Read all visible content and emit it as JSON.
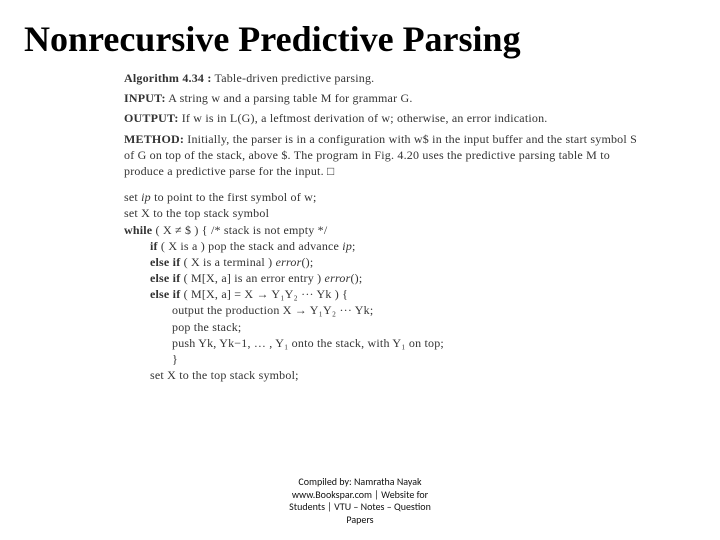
{
  "title": "Nonrecursive Predictive Parsing",
  "alg_head_bold": "Algorithm 4.34 :",
  "alg_head_rest": " Table-driven predictive parsing.",
  "input_bold": "INPUT:",
  "input_rest": " A string w and a parsing table M for grammar G.",
  "output_bold": "OUTPUT:",
  "output_rest": " If w is in L(G), a leftmost derivation of w; otherwise, an error indication.",
  "method_bold": "METHOD:",
  "method_rest": " Initially, the parser is in a configuration with w$ in the input buffer and the start symbol S of G on top of the stack, above $. The program in Fig. 4.20 uses the predictive parsing table M to produce a predictive parse for the input.  □",
  "code_l1a": "set ",
  "code_l1b": "ip",
  "code_l1c": " to point to the first symbol of w;",
  "code_l2": "set X to the top stack symbol",
  "code_l3a": "while",
  "code_l3b": " ( X ≠ $ ) { /* stack is not empty */",
  "code_l4a": "if",
  "code_l4b": " ( X is a ) pop the stack and advance ",
  "code_l4c": "ip",
  "code_l4d": ";",
  "code_l5a": "else if",
  "code_l5b": " ( X is a terminal ) ",
  "code_l5c": "error",
  "code_l5d": "();",
  "code_l6a": "else if",
  "code_l6b": " ( M[X, a] is an error entry ) ",
  "code_l6c": "error",
  "code_l6d": "();",
  "code_l7a": "else if",
  "code_l7b": " ( M[X, a] = X → Y₁Y₂ ··· Yk ) {",
  "code_l8": "output the production  X  → Y₁Y₂ ··· Yk;",
  "code_l9": "pop the stack;",
  "code_l10": "push Yk, Yk−1, … , Y₁ onto the stack, with Y₁ on top;",
  "code_l11": "}",
  "code_l12": "set X to the top stack symbol;",
  "credit_l1": "Compiled by: Namratha Nayak",
  "credit_l2": "www.Bookspar.com | Website for",
  "credit_l3": "Students | VTU – Notes – Question",
  "credit_l4": "Papers"
}
